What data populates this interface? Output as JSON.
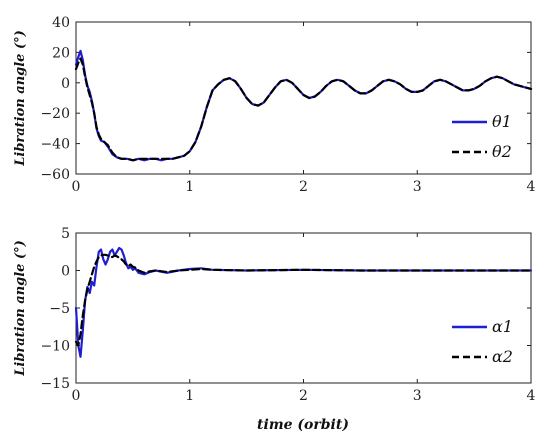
{
  "chart_data": [
    {
      "type": "line",
      "ylabel": "Libration angle (°)",
      "xlabel": "",
      "xlim": [
        0,
        4
      ],
      "ylim": [
        -60,
        40
      ],
      "xticks": [
        "0",
        "1",
        "2",
        "3",
        "4"
      ],
      "yticks": [
        "40",
        "20",
        "0",
        "−20",
        "−40",
        "−60"
      ],
      "grid": false,
      "legend_position": "bottom-right",
      "series": [
        {
          "name": "θ1",
          "color": "#1f1fd1",
          "style": "solid",
          "x": [
            0,
            0.02,
            0.04,
            0.06,
            0.08,
            0.1,
            0.12,
            0.14,
            0.16,
            0.18,
            0.2,
            0.22,
            0.25,
            0.28,
            0.32,
            0.36,
            0.4,
            0.45,
            0.5,
            0.55,
            0.6,
            0.65,
            0.7,
            0.75,
            0.8,
            0.85,
            0.9,
            0.95,
            1.0,
            1.05,
            1.1,
            1.15,
            1.2,
            1.25,
            1.3,
            1.35,
            1.4,
            1.45,
            1.5,
            1.55,
            1.6,
            1.65,
            1.7,
            1.75,
            1.8,
            1.85,
            1.9,
            1.95,
            2.0,
            2.05,
            2.1,
            2.15,
            2.2,
            2.25,
            2.3,
            2.35,
            2.4,
            2.45,
            2.5,
            2.55,
            2.6,
            2.65,
            2.7,
            2.75,
            2.8,
            2.85,
            2.9,
            2.95,
            3.0,
            3.05,
            3.1,
            3.15,
            3.2,
            3.25,
            3.3,
            3.35,
            3.4,
            3.45,
            3.5,
            3.55,
            3.6,
            3.65,
            3.7,
            3.75,
            3.8,
            3.85,
            3.9,
            3.95,
            4.0
          ],
          "y": [
            12,
            17,
            21,
            15,
            5,
            -2,
            -6,
            -12,
            -20,
            -30,
            -35,
            -38,
            -39,
            -42,
            -47,
            -49,
            -50,
            -50,
            -51,
            -50,
            -51,
            -50,
            -50,
            -51,
            -50,
            -50,
            -49,
            -48,
            -45,
            -39,
            -29,
            -16,
            -5,
            -1,
            2,
            3,
            1,
            -4,
            -10,
            -14,
            -15,
            -13,
            -8,
            -3,
            1,
            2,
            0,
            -4,
            -8,
            -10,
            -9,
            -6,
            -2,
            1,
            2,
            1,
            -2,
            -5,
            -7,
            -7,
            -5,
            -2,
            1,
            2,
            1,
            -1,
            -4,
            -6,
            -6,
            -5,
            -2,
            1,
            2,
            1,
            -1,
            -3,
            -5,
            -5,
            -4,
            -2,
            1,
            3,
            4,
            3,
            1,
            -1,
            -2,
            -3,
            -4
          ]
        },
        {
          "name": "θ2",
          "color": "#000000",
          "style": "dashed",
          "x": [
            0,
            0.02,
            0.04,
            0.06,
            0.08,
            0.1,
            0.12,
            0.14,
            0.16,
            0.18,
            0.2,
            0.22,
            0.25,
            0.28,
            0.32,
            0.36,
            0.4,
            0.45,
            0.5,
            0.55,
            0.6,
            0.65,
            0.7,
            0.75,
            0.8,
            0.85,
            0.9,
            0.95,
            1.0,
            1.05,
            1.1,
            1.15,
            1.2,
            1.25,
            1.3,
            1.35,
            1.4,
            1.45,
            1.5,
            1.55,
            1.6,
            1.65,
            1.7,
            1.75,
            1.8,
            1.85,
            1.9,
            1.95,
            2.0,
            2.05,
            2.1,
            2.15,
            2.2,
            2.25,
            2.3,
            2.35,
            2.4,
            2.45,
            2.5,
            2.55,
            2.6,
            2.65,
            2.7,
            2.75,
            2.8,
            2.85,
            2.9,
            2.95,
            3.0,
            3.05,
            3.1,
            3.15,
            3.2,
            3.25,
            3.3,
            3.35,
            3.4,
            3.45,
            3.5,
            3.55,
            3.6,
            3.65,
            3.7,
            3.75,
            3.8,
            3.85,
            3.9,
            3.95,
            4.0
          ],
          "y": [
            9,
            13,
            16,
            12,
            4,
            -3,
            -8,
            -13,
            -20,
            -29,
            -34,
            -37,
            -39,
            -41,
            -46,
            -49,
            -50,
            -50,
            -51,
            -50,
            -50,
            -50,
            -50,
            -50,
            -50,
            -50,
            -49,
            -48,
            -45,
            -39,
            -29,
            -16,
            -5,
            -1,
            2,
            3,
            1,
            -4,
            -10,
            -14,
            -15,
            -13,
            -8,
            -3,
            1,
            2,
            0,
            -4,
            -8,
            -10,
            -9,
            -6,
            -2,
            1,
            2,
            1,
            -2,
            -5,
            -7,
            -7,
            -5,
            -2,
            1,
            2,
            1,
            -1,
            -4,
            -6,
            -6,
            -5,
            -2,
            1,
            2,
            1,
            -1,
            -3,
            -5,
            -5,
            -4,
            -2,
            1,
            3,
            4,
            3,
            1,
            -1,
            -2,
            -3,
            -4
          ]
        }
      ]
    },
    {
      "type": "line",
      "ylabel": "Libration angle (°)",
      "xlabel": "time (orbit)",
      "xlim": [
        0,
        4
      ],
      "ylim": [
        -15,
        5
      ],
      "xticks": [
        "0",
        "1",
        "2",
        "3",
        "4"
      ],
      "yticks": [
        "5",
        "0",
        "−5",
        "−10",
        "−15"
      ],
      "grid": false,
      "legend_position": "bottom-right",
      "series": [
        {
          "name": "α1",
          "color": "#1f1fd1",
          "style": "solid",
          "x": [
            0,
            0.02,
            0.04,
            0.06,
            0.08,
            0.1,
            0.12,
            0.14,
            0.16,
            0.18,
            0.2,
            0.22,
            0.24,
            0.26,
            0.28,
            0.3,
            0.32,
            0.34,
            0.36,
            0.38,
            0.4,
            0.42,
            0.44,
            0.46,
            0.48,
            0.5,
            0.52,
            0.55,
            0.6,
            0.65,
            0.7,
            0.8,
            0.9,
            1.0,
            1.1,
            1.2,
            1.5,
            2.0,
            2.5,
            3.0,
            3.5,
            4.0
          ],
          "y": [
            -5,
            -10,
            -11.5,
            -8,
            -4,
            -2.2,
            -3,
            -1.5,
            -2,
            0.5,
            2.5,
            2.8,
            1.5,
            0.8,
            1.5,
            2.5,
            2.8,
            2,
            2.5,
            3,
            2.8,
            2,
            1,
            0.3,
            0.5,
            0.1,
            0.3,
            -0.3,
            -0.5,
            -0.2,
            0,
            -0.3,
            0,
            0.2,
            0.3,
            0.1,
            0,
            0.1,
            0,
            0,
            0,
            0
          ]
        },
        {
          "name": "α2",
          "color": "#000000",
          "style": "dashed",
          "x": [
            0,
            0.02,
            0.04,
            0.06,
            0.08,
            0.1,
            0.12,
            0.14,
            0.16,
            0.18,
            0.2,
            0.22,
            0.24,
            0.26,
            0.28,
            0.3,
            0.32,
            0.34,
            0.36,
            0.38,
            0.4,
            0.42,
            0.44,
            0.46,
            0.48,
            0.5,
            0.52,
            0.55,
            0.6,
            0.65,
            0.7,
            0.8,
            0.9,
            1.0,
            1.1,
            1.2,
            1.5,
            2.0,
            2.5,
            3.0,
            3.5,
            4.0
          ],
          "y": [
            -9.5,
            -10,
            -8.5,
            -6,
            -4,
            -2.5,
            -1.5,
            -0.5,
            0.5,
            1.2,
            1.8,
            2,
            2.1,
            2.1,
            2,
            1.8,
            1.8,
            2,
            1.9,
            1.7,
            1.5,
            1.2,
            0.8,
            0.6,
            0.8,
            0.5,
            0.4,
            0,
            -0.3,
            -0.1,
            0,
            -0.2,
            0,
            0.1,
            0.2,
            0.1,
            0,
            0.1,
            0,
            0,
            0,
            0
          ]
        }
      ]
    }
  ]
}
